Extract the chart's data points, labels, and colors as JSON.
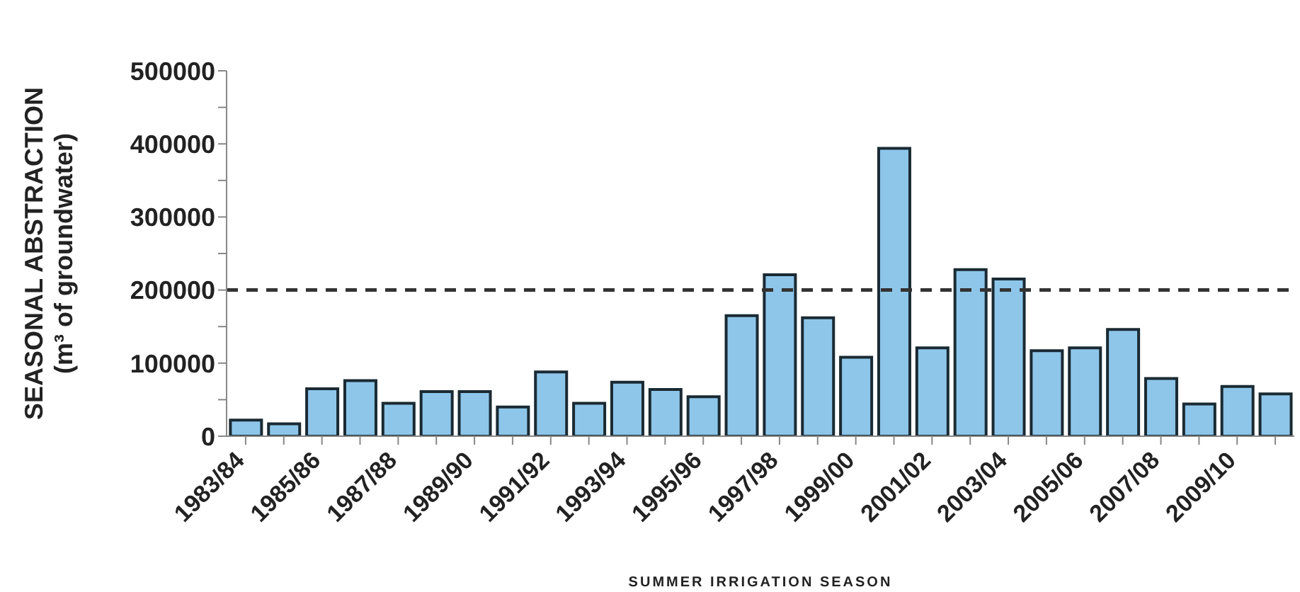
{
  "chart_data": {
    "type": "bar",
    "ylabel": "SEASONAL ABSTRACTION\n(m³ of groundwater)",
    "xlabel": "SUMMER IRRIGATION SEASON",
    "categories": [
      "1983/84",
      null,
      "1985/86",
      null,
      "1987/88",
      null,
      "1989/90",
      null,
      "1991/92",
      null,
      "1993/94",
      null,
      "1995/96",
      null,
      "1997/98",
      null,
      "1999/00",
      null,
      "2001/02",
      null,
      "2003/04",
      null,
      "2005/06",
      null,
      "2007/08",
      null,
      "2009/10",
      null
    ],
    "values": [
      22000,
      17000,
      65000,
      76000,
      45000,
      61000,
      61000,
      40000,
      88000,
      45000,
      74000,
      64000,
      54000,
      165000,
      221000,
      162000,
      108000,
      394000,
      121000,
      228000,
      215000,
      117000,
      121000,
      146000,
      79000,
      44000,
      68000,
      58000
    ],
    "color": "#8ec6ea",
    "ylim": [
      0,
      500000
    ],
    "yticks": [
      0,
      {
        "value": 50000,
        "label": null
      },
      100000,
      {
        "value": 150000,
        "label": null
      },
      200000,
      {
        "value": 250000,
        "label": null
      },
      300000,
      {
        "value": 350000,
        "label": null
      },
      400000,
      {
        "value": 450000,
        "label": null
      },
      500000
    ],
    "ref_lines": [
      {
        "axis": "y",
        "value": 200000,
        "line_style": "dashed",
        "color": "#333333"
      }
    ],
    "grid": false,
    "legend": false
  }
}
